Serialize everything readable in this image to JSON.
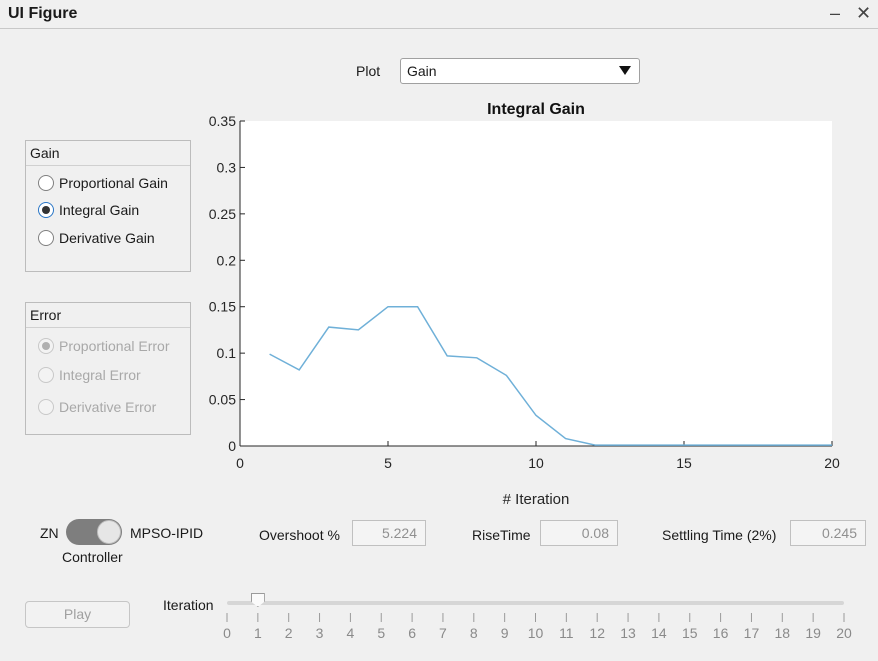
{
  "window": {
    "title": "UI Figure",
    "minimize_label": "–",
    "close_label": "✕"
  },
  "plot_selector": {
    "label": "Plot",
    "value": "Gain"
  },
  "gain_panel": {
    "title": "Gain",
    "options": [
      {
        "label": "Proportional Gain",
        "selected": false
      },
      {
        "label": "Integral Gain",
        "selected": true
      },
      {
        "label": "Derivative Gain",
        "selected": false
      }
    ]
  },
  "error_panel": {
    "title": "Error",
    "disabled": true,
    "options": [
      {
        "label": "Proportional Error",
        "selected": true
      },
      {
        "label": "Integral Error",
        "selected": false
      },
      {
        "label": "Derivative Error",
        "selected": false
      }
    ]
  },
  "chart_data": {
    "type": "line",
    "title": "Integral Gain",
    "xlabel": "# Iteration",
    "ylabel": "",
    "xlim": [
      0,
      20
    ],
    "ylim": [
      0,
      0.35
    ],
    "xticks": [
      0,
      5,
      10,
      15,
      20
    ],
    "yticks": [
      0,
      0.05,
      0.1,
      0.15,
      0.2,
      0.25,
      0.3,
      0.35
    ],
    "ytick_labels": [
      "0",
      "0.05",
      "0.1",
      "0.15",
      "0.2",
      "0.25",
      "0.3",
      "0.35"
    ],
    "grid": false,
    "color": "#6fb0d8",
    "series": [
      {
        "x": [
          1,
          2,
          3,
          4,
          5,
          6,
          7,
          8,
          9,
          10,
          11,
          12,
          13,
          14,
          15,
          16,
          17,
          18,
          19,
          20
        ],
        "values": [
          0.099,
          0.082,
          0.128,
          0.125,
          0.15,
          0.15,
          0.097,
          0.095,
          0.076,
          0.033,
          0.008,
          0.001,
          0.001,
          0.001,
          0.001,
          0.001,
          0.001,
          0.001,
          0.001,
          0.001
        ]
      }
    ]
  },
  "controller": {
    "left_label": "ZN",
    "right_label": "MPSO-IPID",
    "caption": "Controller",
    "state": "MPSO-IPID"
  },
  "metrics": {
    "overshoot_label": "Overshoot %",
    "overshoot_value": "5.224",
    "risetime_label": "RiseTime",
    "risetime_value": "0.08",
    "settling_label": "Settling Time (2%)",
    "settling_value": "0.245"
  },
  "play_button": {
    "label": "Play"
  },
  "iteration_slider": {
    "label": "Iteration",
    "value": 1,
    "min": 0,
    "max": 20,
    "tick_labels": [
      "0",
      "1",
      "2",
      "3",
      "4",
      "5",
      "6",
      "7",
      "8",
      "9",
      "10",
      "11",
      "12",
      "13",
      "14",
      "15",
      "16",
      "17",
      "18",
      "19",
      "20"
    ]
  }
}
